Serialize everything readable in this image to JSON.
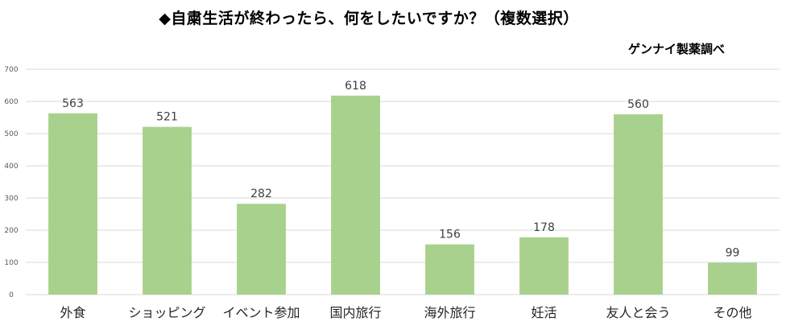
{
  "chart_data": {
    "type": "bar",
    "title": "◆自粛生活が終わったら、何をしたいですか？（複数選択）",
    "source": "ゲンナイ製薬調べ",
    "categories": [
      "外食",
      "ショッピング",
      "イベント参加",
      "国内旅行",
      "海外旅行",
      "妊活",
      "友人と会う",
      "その他"
    ],
    "values": [
      563,
      521,
      282,
      618,
      156,
      178,
      560,
      99
    ],
    "data_labels": [
      "563",
      "521",
      "282",
      "618",
      "156",
      "178",
      "560",
      "99"
    ],
    "yticks": [
      "0",
      "100",
      "200",
      "300",
      "400",
      "500",
      "600",
      "700"
    ],
    "ylim": [
      0,
      700
    ],
    "xlabel": "",
    "ylabel": "",
    "grid": true,
    "legend": "none",
    "bar_color": "#a9d18e",
    "grid_color": "#d9d9d9"
  }
}
